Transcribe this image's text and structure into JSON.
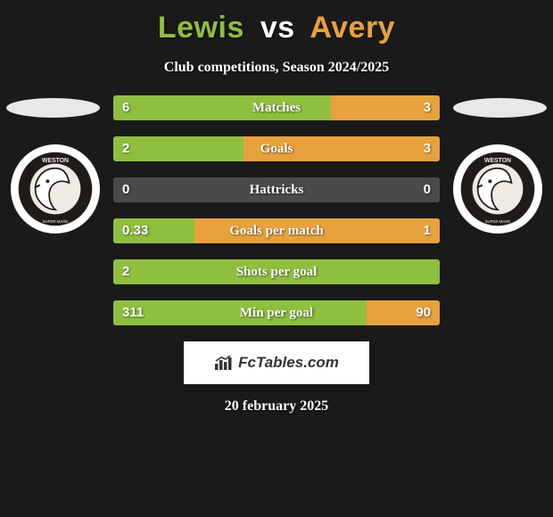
{
  "title": {
    "player1": "Lewis",
    "vs": "vs",
    "player2": "Avery"
  },
  "subtitle": "Club competitions, Season 2024/2025",
  "colors": {
    "player1": "#8fbf3f",
    "player2": "#e8a23d",
    "neutral_bar": "#4a4a4a",
    "vs_color": "#ffffff",
    "ellipse": "#e8e8e8",
    "badge_bg": "#ffffff",
    "background": "#1a1a1a"
  },
  "badge": {
    "outer": "#1f1b18",
    "inner": "#efeae4",
    "bird_body": "#ffffff",
    "bird_outline": "#1f1b18",
    "text": "WESTON"
  },
  "stats": [
    {
      "label": "Matches",
      "left_val": "6",
      "right_val": "3",
      "left_pct": 66.7,
      "right_pct": 33.3
    },
    {
      "label": "Goals",
      "left_val": "2",
      "right_val": "3",
      "left_pct": 40.0,
      "right_pct": 60.0
    },
    {
      "label": "Hattricks",
      "left_val": "0",
      "right_val": "0",
      "left_pct": 50.0,
      "right_pct": 50.0,
      "neutral": true
    },
    {
      "label": "Goals per match",
      "left_val": "0.33",
      "right_val": "1",
      "left_pct": 24.8,
      "right_pct": 75.2
    },
    {
      "label": "Shots per goal",
      "left_val": "2",
      "right_val": "",
      "left_pct": 100.0,
      "right_pct": 0.0
    },
    {
      "label": "Min per goal",
      "left_val": "311",
      "right_val": "90",
      "left_pct": 77.5,
      "right_pct": 22.5
    }
  ],
  "footer": {
    "brand": "FcTables.com"
  },
  "date": "20 february 2025"
}
